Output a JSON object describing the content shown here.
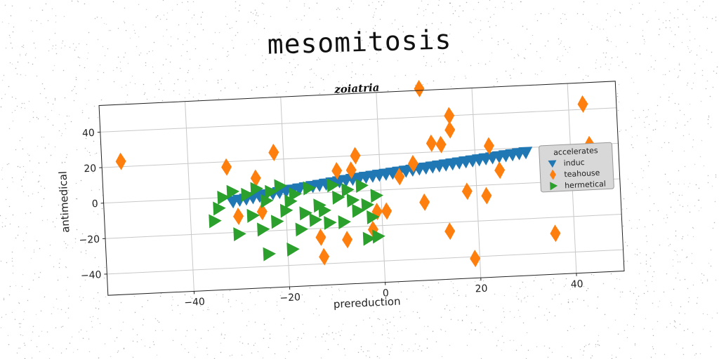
{
  "page": {
    "title": "mesomitosis"
  },
  "chart_data": {
    "type": "scatter",
    "title": "mesomitosis",
    "subtitle": "zoiatria",
    "xlabel": "prereduction",
    "ylabel": "antimedical",
    "xlim": [
      -58,
      50
    ],
    "ylim": [
      -52,
      55
    ],
    "xticks": [
      -40,
      -20,
      0,
      20,
      40
    ],
    "yticks": [
      -40,
      -20,
      0,
      20,
      40
    ],
    "xtick_labels": [
      "−40",
      "−20",
      "0",
      "20",
      "40"
    ],
    "ytick_labels": [
      "−40",
      "−20",
      "0",
      "20",
      "40"
    ],
    "grid": true,
    "legend": {
      "title": "accelerates",
      "placement": "right"
    },
    "colors": {
      "induc": "#1f77b4",
      "teahouse": "#ff7f0e",
      "hermetical": "#2ca02c"
    },
    "series": [
      {
        "name": "induc",
        "marker": "triangle-down",
        "x": [
          -31,
          -29.6,
          -28.2,
          -26.8,
          -25.4,
          -24,
          -22.6,
          -21.2,
          -19.8,
          -18.4,
          -17,
          -15.6,
          -14.2,
          -12.8,
          -11.4,
          -10,
          -8.6,
          -7.2,
          -5.8,
          -4.4,
          -3,
          -1.6,
          -0.2,
          1.2,
          2.6,
          4,
          5.4,
          6.8,
          8.2,
          9.6,
          11,
          12.4,
          13.8,
          15.2,
          16.6,
          18,
          19.4,
          20.8,
          22.2,
          23.6,
          25,
          26.4,
          27.8,
          29.2,
          30.6
        ],
        "y": [
          -2.5,
          -1.8,
          -1.3,
          -0.7,
          -0.1,
          0.5,
          1.0,
          1.5,
          2.0,
          2.5,
          3.0,
          3.5,
          4.0,
          4.5,
          5.0,
          5.5,
          6.0,
          6.5,
          7.0,
          7.4,
          7.8,
          8.2,
          8.6,
          9.0,
          9.4,
          9.8,
          10.2,
          10.6,
          11.0,
          11.4,
          11.8,
          12.2,
          12.6,
          13.0,
          13.4,
          13.8,
          14.2,
          14.6,
          15.0,
          15.4,
          15.8,
          16.2,
          16.6,
          17.0,
          17.4
        ]
      },
      {
        "name": "teahouse",
        "marker": "diamond",
        "x": [
          -54,
          -32,
          -30,
          -26,
          -25,
          -22,
          -13,
          -12.5,
          -9,
          -7.5,
          -6,
          -5,
          -2,
          -1,
          1,
          4,
          7,
          9,
          9,
          11,
          13,
          14,
          15,
          15,
          18,
          19,
          22,
          23,
          25,
          36,
          43,
          44
        ],
        "y": [
          23,
          17,
          -11,
          10,
          -9,
          24,
          -25,
          -36,
          12,
          -27,
          12,
          20,
          -22,
          -12,
          -12,
          7,
          14,
          -8,
          56,
          25,
          24,
          -25,
          32,
          40,
          -3,
          -41,
          -6,
          22,
          8,
          -29,
          43,
          20
        ]
      },
      {
        "name": "hermetical",
        "marker": "triangle-right",
        "x": [
          -35,
          -34,
          -33,
          -31,
          -30,
          -28,
          -27,
          -26,
          -25,
          -24,
          -24,
          -23,
          -22,
          -21,
          -20,
          -19,
          -19,
          -18,
          -17,
          -16,
          -15,
          -14,
          -13,
          -12,
          -11,
          -10,
          -9,
          -8,
          -7,
          -6,
          -5,
          -4,
          -3,
          -3,
          -2,
          -1,
          -1
        ],
        "y": [
          -13,
          -6,
          0,
          3,
          -21,
          1,
          -11,
          4,
          -19,
          -33,
          -3,
          2,
          -15,
          5,
          -9,
          -31,
          -4,
          0,
          -20,
          -11,
          3,
          -15,
          -7,
          -10,
          -17,
          4,
          -3,
          -17,
          1,
          -5,
          -11,
          3,
          -27,
          -8,
          -15,
          -26,
          -3
        ]
      }
    ]
  }
}
